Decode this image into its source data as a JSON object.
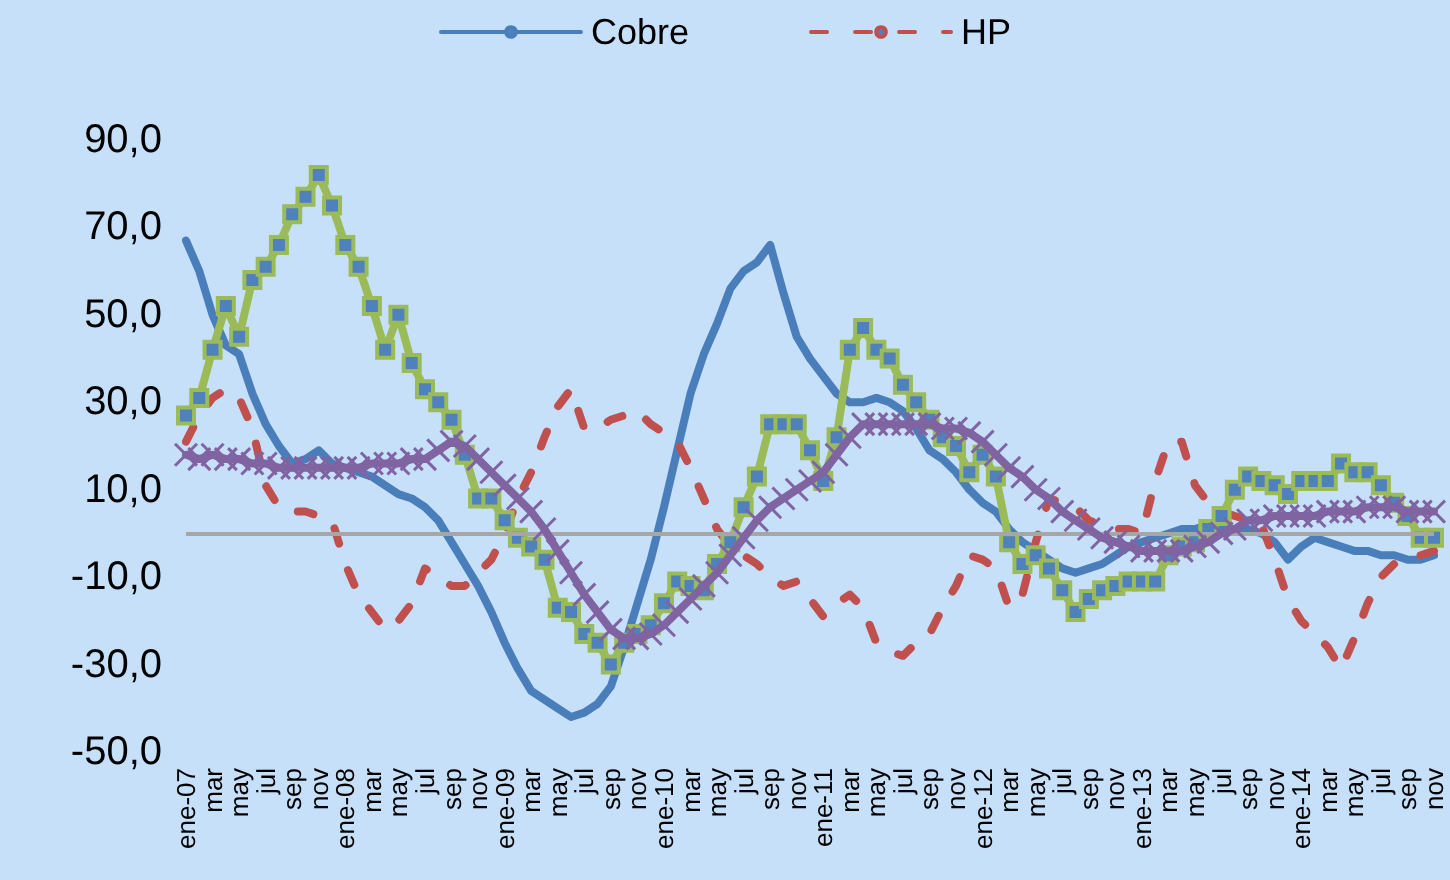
{
  "chart_data": {
    "type": "line",
    "categories": [
      "ene-07",
      null,
      "mar",
      null,
      "may",
      null,
      "jul",
      null,
      "sep",
      null,
      "nov",
      null,
      "ene-08",
      null,
      "mar",
      null,
      "may",
      null,
      "jul",
      null,
      "sep",
      null,
      "nov",
      null,
      "ene-09",
      null,
      "mar",
      null,
      "may",
      null,
      "jul",
      null,
      "sep",
      null,
      "nov",
      null,
      "ene-10",
      null,
      "mar",
      null,
      "may",
      null,
      "jul",
      null,
      "sep",
      null,
      "nov",
      null,
      "ene-11",
      null,
      "mar",
      null,
      "may",
      null,
      "jul",
      null,
      "sep",
      null,
      "nov",
      null,
      "ene-12",
      null,
      "mar",
      null,
      "may",
      null,
      "jul",
      null,
      "sep",
      null,
      "nov",
      null,
      "ene-13",
      null,
      "mar",
      null,
      "may",
      null,
      "jul",
      null,
      "sep",
      null,
      "nov",
      null,
      "ene-14",
      null,
      "mar",
      null,
      "may",
      null,
      "jul",
      null,
      "sep",
      null,
      "nov"
    ],
    "series": [
      {
        "name": "Cobre",
        "color": "#4a7ebb",
        "line_style": "solid",
        "marker": "none",
        "values": [
          67,
          60,
          50,
          43,
          41,
          32,
          25,
          20,
          16,
          17,
          19,
          16,
          15,
          14,
          13,
          11,
          9,
          8,
          6,
          3,
          -2,
          -7,
          -12,
          -18,
          -25,
          -31,
          -36,
          -38,
          -40,
          -42,
          -41,
          -39,
          -35,
          -26,
          -16,
          -6,
          6,
          19,
          32,
          41,
          48,
          56,
          60,
          62,
          66,
          55,
          45,
          40,
          36,
          32,
          30,
          30,
          31,
          30,
          28,
          24,
          19,
          17,
          14,
          10,
          7,
          5,
          1,
          -2,
          -4,
          -6,
          -8,
          -9,
          -8,
          -7,
          -5,
          -3,
          -2,
          -1,
          0,
          1,
          1,
          2,
          1,
          1,
          1,
          0,
          -2,
          -6,
          -3,
          -1,
          -2,
          -3,
          -4,
          -4,
          -5,
          -5,
          -6,
          -6,
          -5
        ]
      },
      {
        "name": "HP",
        "color": "#c0504d",
        "line_style": "dashed",
        "marker": "none",
        "values": [
          21,
          27,
          31,
          33,
          31,
          24,
          11,
          6,
          5,
          5,
          4,
          3,
          -7,
          -14,
          -18,
          -22,
          -20,
          -16,
          -8,
          -10,
          -12,
          -12,
          -9,
          -6,
          0,
          8,
          14,
          22,
          29,
          33,
          24,
          24,
          26,
          27,
          28,
          25,
          23,
          21,
          15,
          8,
          1,
          -3,
          -5,
          -7,
          -10,
          -12,
          -11,
          -15,
          -19,
          -16,
          -14,
          -17,
          -25,
          -27,
          -28,
          -25,
          -23,
          -17,
          -12,
          -5,
          -6,
          -8,
          -17,
          -14,
          -2,
          8,
          7,
          6,
          3,
          2,
          1,
          1,
          0,
          12,
          21,
          21,
          11,
          7,
          5,
          4,
          3,
          2,
          -6,
          -15,
          -20,
          -23,
          -26,
          -31,
          -24,
          -16,
          -10,
          -7,
          -6,
          -5,
          -4
        ]
      },
      {
        "color": "#9bbb59",
        "line_style": "solid",
        "marker": "square",
        "values": [
          27,
          31,
          42,
          52,
          45,
          58,
          61,
          66,
          73,
          77,
          82,
          75,
          66,
          61,
          52,
          42,
          50,
          39,
          33,
          30,
          26,
          18,
          8,
          8,
          3,
          -1,
          -3,
          -6,
          -17,
          -18,
          -23,
          -25,
          -30,
          -25,
          -23,
          -21,
          -16,
          -11,
          -12,
          -13,
          -7,
          -2,
          6,
          13,
          25,
          25,
          25,
          19,
          12,
          22,
          42,
          47,
          42,
          40,
          34,
          30,
          26,
          22,
          20,
          14,
          18,
          13,
          -2,
          -7,
          -5,
          -8,
          -13,
          -18,
          -15,
          -13,
          -12,
          -11,
          -11,
          -11,
          -5,
          -3,
          -2,
          1,
          4,
          10,
          13,
          12,
          11,
          9,
          12,
          12,
          12,
          16,
          14,
          14,
          11,
          7,
          4,
          -1,
          -1
        ]
      },
      {
        "color": "#8064a2",
        "line_style": "solid",
        "marker": "cross",
        "values": [
          18,
          17,
          18,
          17,
          17,
          16,
          16,
          15,
          15,
          15,
          15,
          15,
          15,
          15,
          16,
          16,
          16,
          17,
          17,
          19,
          21,
          20,
          17,
          14,
          11,
          8,
          5,
          1,
          -4,
          -9,
          -14,
          -18,
          -22,
          -24,
          -24,
          -23,
          -21,
          -18,
          -15,
          -12,
          -9,
          -5,
          -1,
          3,
          6,
          8,
          10,
          12,
          14,
          18,
          22,
          25,
          25,
          25,
          25,
          25,
          25,
          24,
          24,
          23,
          21,
          18,
          15,
          13,
          10,
          8,
          5,
          3,
          1,
          -1,
          -2,
          -3,
          -4,
          -4,
          -4,
          -4,
          -3,
          -2,
          0,
          1,
          3,
          3,
          4,
          4,
          4,
          4,
          5,
          5,
          5,
          6,
          6,
          6,
          5,
          5,
          5
        ]
      }
    ],
    "ylim": [
      -50,
      90
    ],
    "yticks": [
      {
        "value": -50,
        "label": "-50,0"
      },
      {
        "value": -30,
        "label": "-30,0"
      },
      {
        "value": -10,
        "label": "-10,0"
      },
      {
        "value": 10,
        "label": "10,0"
      },
      {
        "value": 30,
        "label": "30,0"
      },
      {
        "value": 50,
        "label": "50,0"
      },
      {
        "value": 70,
        "label": "70,0"
      },
      {
        "value": 90,
        "label": "90,0"
      }
    ],
    "ref_lines": [
      {
        "axis": "y",
        "value": 0,
        "color": "#a6a6a6"
      }
    ],
    "grid": false,
    "legend": "top"
  }
}
